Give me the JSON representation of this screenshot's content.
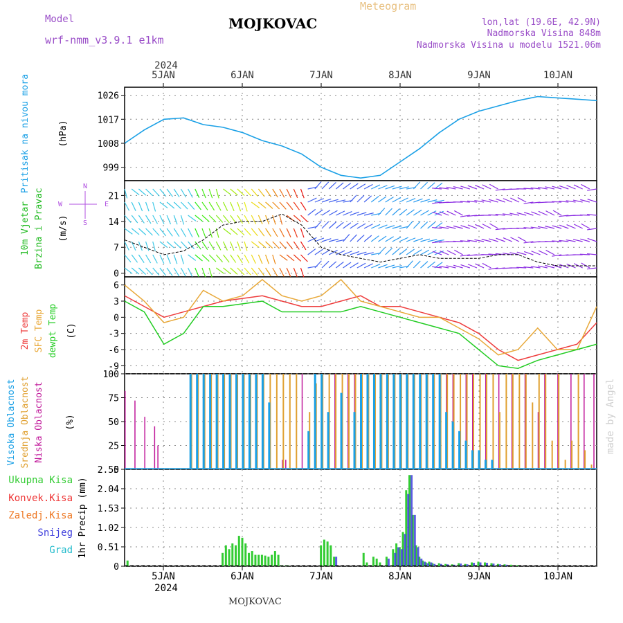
{
  "header": {
    "title": "MOJKOVAC",
    "meteogram": "Meteogram",
    "model_label": "Model",
    "model_name": "wrf-nmm_v3.9.1 e1km",
    "lonlat": "lon,lat (19.6E, 42.9N)",
    "elevation": "Nadmorska Visina 848m",
    "model_elevation": "Nadmorska Visina u modelu 1521.06m",
    "footer": "MOJKOVAC",
    "credit": "made by Angel"
  },
  "dates": {
    "year": "2024",
    "labels": [
      "5JAN",
      "6JAN",
      "7JAN",
      "8JAN",
      "9JAN",
      "10JAN"
    ]
  },
  "colors": {
    "pressure": "#1aa0e6",
    "temp2m": "#ee3c3c",
    "sfc": "#e8a838",
    "dewpt": "#22cc22",
    "low_cloud": "#c0189a",
    "mid_cloud": "#e0a030",
    "high_cloud": "#1aa0e6",
    "total_precip": "#33cc33",
    "conv_precip": "#ee3333",
    "frozen_precip": "#ee7722",
    "snow": "#4040dd",
    "hail": "#22bbcc",
    "wind_label": "#22bb22",
    "arrow_label": "#b050e0"
  },
  "chart_data": [
    {
      "type": "line",
      "title": "Pritisak na nivou mora",
      "ylabel": "(hPa)",
      "y_ticks": [
        "1026",
        "1017",
        "1008",
        "999"
      ],
      "ylim": [
        994,
        1029
      ],
      "grid": true,
      "x_start": "2024-01-04 12:00",
      "x_end": "2024-01-10 12:00",
      "series": [
        {
          "key": "pressure",
          "x_hours": [
            0,
            6,
            12,
            18,
            24,
            30,
            36,
            42,
            48,
            54,
            60,
            66,
            72,
            78,
            84,
            90,
            96,
            102,
            108,
            114,
            120,
            126,
            132,
            138,
            144
          ],
          "values": [
            1008,
            1013,
            1017,
            1017.5,
            1015,
            1014,
            1012,
            1009,
            1007,
            1004,
            999,
            996,
            995,
            996,
            1001,
            1006,
            1012,
            1017,
            1020,
            1022,
            1024,
            1025.5,
            1025,
            1024.5,
            1024
          ]
        }
      ]
    },
    {
      "type": "line",
      "title": "10m Vjetar Brzina i Pravac",
      "title_lines": [
        "10m Vjetar",
        "Brzina i Pravac"
      ],
      "ylabel": "(m/s)",
      "y_ticks": [
        "21",
        "14",
        "7",
        "0"
      ],
      "ylim": [
        -1,
        25
      ],
      "grid": true,
      "arrow_legend": [
        "N",
        "S",
        "W",
        "E"
      ],
      "series": [
        {
          "key": "wind",
          "x_hours": [
            0,
            6,
            12,
            18,
            24,
            30,
            36,
            42,
            48,
            54,
            60,
            66,
            72,
            78,
            84,
            90,
            96,
            102,
            108,
            114,
            120,
            126,
            132,
            138,
            144
          ],
          "values": [
            9,
            7,
            5,
            6,
            9,
            13,
            14,
            14,
            16,
            13,
            7,
            5,
            4,
            3,
            4,
            5,
            4,
            4,
            4,
            5,
            5,
            3,
            2,
            2,
            2
          ]
        }
      ]
    },
    {
      "type": "line",
      "title_lines": [
        "2m Temp",
        "SFC Temp",
        "dewpt Temp"
      ],
      "ylabel": "(C)",
      "y_ticks": [
        "6",
        "3",
        "0",
        "-3",
        "-6",
        "-9"
      ],
      "ylim": [
        -10.5,
        7.5
      ],
      "grid": true,
      "series": [
        {
          "key": "temp2m",
          "name": "2m Temp",
          "x_hours": [
            0,
            6,
            12,
            18,
            24,
            30,
            36,
            42,
            48,
            54,
            60,
            66,
            72,
            78,
            84,
            90,
            96,
            102,
            108,
            114,
            120,
            126,
            132,
            138,
            144
          ],
          "values": [
            4,
            2,
            0,
            1,
            2,
            3,
            3.5,
            4,
            3,
            2,
            2,
            3,
            4,
            2,
            2,
            1,
            0,
            -1,
            -3,
            -6,
            -8,
            -7,
            -6,
            -5,
            -1
          ]
        },
        {
          "key": "sfc",
          "name": "SFC Temp",
          "x_hours": [
            0,
            6,
            12,
            18,
            24,
            30,
            36,
            42,
            48,
            54,
            60,
            66,
            72,
            78,
            84,
            90,
            96,
            102,
            108,
            114,
            120,
            126,
            132,
            138,
            144
          ],
          "values": [
            6,
            3,
            -1,
            0,
            5,
            3,
            4,
            7,
            4,
            3,
            4,
            7,
            3,
            2,
            1,
            0,
            0,
            -2,
            -4,
            -7,
            -6,
            -2,
            -6,
            -6,
            2
          ]
        },
        {
          "key": "dewpt",
          "name": "dewpt Temp",
          "x_hours": [
            0,
            6,
            12,
            18,
            24,
            30,
            36,
            42,
            48,
            54,
            60,
            66,
            72,
            78,
            84,
            90,
            96,
            102,
            108,
            114,
            120,
            126,
            132,
            138,
            144
          ],
          "values": [
            3,
            1,
            -5,
            -3,
            2,
            2,
            2.5,
            3,
            1,
            1,
            1,
            1,
            2,
            1,
            0,
            -1,
            -2,
            -3,
            -6,
            -9,
            -9.5,
            -8,
            -7,
            -6,
            -5
          ]
        }
      ]
    },
    {
      "type": "bar",
      "title_lines": [
        "Visoka Oblacnost",
        "Srednja Oblacnost",
        "Niska Oblacnost"
      ],
      "ylabel": "(%)",
      "y_ticks": [
        "100",
        "75",
        "50",
        "25",
        "0"
      ],
      "ylim": [
        0,
        100
      ],
      "grid": true,
      "series": [
        {
          "key": "low",
          "name": "Niska Oblacnost",
          "x_hours": [
            0,
            3,
            6,
            9,
            10,
            48,
            49,
            54,
            64,
            68,
            70,
            74,
            78,
            80,
            84,
            86,
            90,
            94,
            98,
            100,
            104,
            106,
            110,
            114,
            118,
            122,
            126,
            128,
            132,
            136,
            140,
            143
          ],
          "values": [
            82,
            72,
            55,
            45,
            25,
            10,
            10,
            100,
            100,
            100,
            100,
            100,
            100,
            100,
            100,
            100,
            100,
            100,
            100,
            100,
            100,
            100,
            100,
            100,
            100,
            100,
            60,
            100,
            100,
            100,
            100,
            100
          ]
        },
        {
          "key": "mid",
          "name": "Srednja Oblacnost",
          "x_hours": [
            20,
            22,
            24,
            26,
            28,
            30,
            32,
            34,
            36,
            38,
            40,
            42,
            44,
            46,
            48,
            50,
            52,
            56,
            58,
            60,
            62,
            64,
            66,
            68,
            70,
            72,
            74,
            76,
            78,
            80,
            82,
            84,
            86,
            88,
            90,
            92,
            94,
            96,
            98,
            100,
            102,
            104,
            106,
            108,
            110,
            112,
            114,
            116,
            118,
            120,
            122,
            124,
            126,
            128,
            130,
            132,
            134,
            136,
            138,
            140,
            142
          ],
          "values": [
            100,
            100,
            100,
            100,
            100,
            100,
            100,
            100,
            100,
            100,
            100,
            100,
            100,
            100,
            100,
            100,
            100,
            60,
            90,
            100,
            100,
            100,
            100,
            100,
            100,
            100,
            100,
            100,
            100,
            100,
            100,
            100,
            100,
            100,
            100,
            100,
            100,
            100,
            100,
            100,
            100,
            100,
            100,
            100,
            100,
            100,
            60,
            100,
            100,
            100,
            100,
            70,
            100,
            100,
            30,
            100,
            10,
            30,
            100,
            20,
            5
          ]
        },
        {
          "key": "high",
          "name": "Visoka Oblacnost",
          "x_hours": [
            20,
            22,
            24,
            26,
            28,
            30,
            32,
            34,
            36,
            38,
            40,
            42,
            44,
            56,
            58,
            60,
            62,
            66,
            70,
            72,
            74,
            76,
            78,
            80,
            82,
            84,
            86,
            88,
            90,
            92,
            94,
            96,
            98,
            100,
            102,
            104,
            106,
            108,
            110,
            112
          ],
          "values": [
            100,
            100,
            100,
            100,
            100,
            100,
            100,
            100,
            100,
            100,
            100,
            100,
            70,
            40,
            100,
            100,
            60,
            80,
            60,
            100,
            100,
            100,
            100,
            100,
            100,
            100,
            100,
            100,
            100,
            100,
            100,
            100,
            60,
            50,
            40,
            30,
            20,
            20,
            10,
            10
          ]
        }
      ]
    },
    {
      "type": "bar",
      "title_lines": [
        "Ukupna Kisa",
        "Konvek.Kisa",
        "Zaledj.Kisa",
        "Snijeg",
        "Grad"
      ],
      "ylabel": "1hr Precip (mm)",
      "y_ticks": [
        "2.55",
        "2.04",
        "1.53",
        "1.02",
        "0.51",
        "0"
      ],
      "ylim": [
        0,
        2.55
      ],
      "grid": true,
      "series": [
        {
          "key": "total",
          "name": "Ukupna Kisa",
          "x_hours": [
            1,
            30,
            31,
            32,
            33,
            34,
            35,
            36,
            37,
            38,
            39,
            40,
            41,
            42,
            43,
            44,
            45,
            46,
            47,
            48,
            49,
            50,
            60,
            61,
            62,
            63,
            64,
            73,
            74,
            76,
            77,
            78,
            80,
            82,
            83,
            84,
            85,
            86,
            87,
            88,
            89,
            90,
            91,
            92,
            93,
            94,
            96,
            98,
            100,
            102,
            104,
            106,
            108,
            110,
            112,
            114,
            116,
            118,
            120
          ],
          "values": [
            0.15,
            0.35,
            0.55,
            0.45,
            0.6,
            0.55,
            0.8,
            0.75,
            0.6,
            0.35,
            0.4,
            0.3,
            0.3,
            0.3,
            0.28,
            0.25,
            0.3,
            0.4,
            0.3,
            0.02,
            0.01,
            0.01,
            0.55,
            0.7,
            0.65,
            0.55,
            0.25,
            0.35,
            0.1,
            0.25,
            0.2,
            0.1,
            0.25,
            0.45,
            0.6,
            0.5,
            0.9,
            2.0,
            2.4,
            1.35,
            0.55,
            0.25,
            0.15,
            0.1,
            0.12,
            0.08,
            0.08,
            0.06,
            0.05,
            0.08,
            0.06,
            0.1,
            0.12,
            0.1,
            0.08,
            0.06,
            0.05,
            0.04,
            0.03
          ]
        },
        {
          "key": "snow",
          "name": "Snijeg",
          "x_hours": [
            64,
            80,
            82,
            83,
            84,
            85,
            86,
            87,
            88,
            89,
            90,
            91,
            92,
            93,
            94,
            96,
            98,
            100,
            102,
            104,
            106,
            108,
            110,
            112,
            114,
            116
          ],
          "values": [
            0.25,
            0.2,
            0.35,
            0.5,
            0.45,
            0.85,
            1.9,
            2.4,
            1.35,
            0.5,
            0.2,
            0.12,
            0.08,
            0.1,
            0.06,
            0.06,
            0.05,
            0.04,
            0.07,
            0.05,
            0.09,
            0.1,
            0.09,
            0.07,
            0.05,
            0.04
          ]
        }
      ]
    }
  ]
}
